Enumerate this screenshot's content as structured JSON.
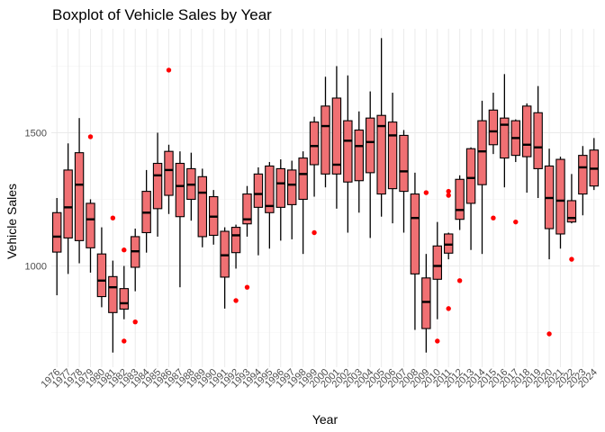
{
  "chart_data": {
    "type": "boxplot",
    "title": "Boxplot of Vehicle Sales by Year",
    "xlabel": "Year",
    "ylabel": "Vehicle Sales",
    "ylim": [
      620,
      1890
    ],
    "yticks": [
      1000,
      1500
    ],
    "grid": true,
    "box_color": "#F07073",
    "outlier_color": "#FF0000",
    "categories": [
      "1976",
      "1977",
      "1978",
      "1979",
      "1980",
      "1981",
      "1982",
      "1983",
      "1984",
      "1985",
      "1986",
      "1987",
      "1988",
      "1989",
      "1990",
      "1991",
      "1992",
      "1993",
      "1994",
      "1995",
      "1996",
      "1997",
      "1998",
      "1999",
      "2000",
      "2001",
      "2002",
      "2003",
      "2004",
      "2005",
      "2006",
      "2007",
      "2008",
      "2009",
      "2010",
      "2011",
      "2012",
      "2013",
      "2014",
      "2015",
      "2016",
      "2017",
      "2018",
      "2019",
      "2020",
      "2021",
      "2022",
      "2023",
      "2024"
    ],
    "boxes": [
      {
        "x": "1976",
        "whisker_low": 890,
        "q1": 1052,
        "median": 1110,
        "q3": 1200,
        "whisker_high": 1255,
        "outliers": []
      },
      {
        "x": "1977",
        "whisker_low": 970,
        "q1": 1105,
        "median": 1220,
        "q3": 1360,
        "whisker_high": 1460,
        "outliers": []
      },
      {
        "x": "1978",
        "whisker_low": 1010,
        "q1": 1095,
        "median": 1305,
        "q3": 1425,
        "whisker_high": 1555,
        "outliers": []
      },
      {
        "x": "1979",
        "whisker_low": 975,
        "q1": 1068,
        "median": 1175,
        "q3": 1235,
        "whisker_high": 1250,
        "outliers": [
          1485
        ]
      },
      {
        "x": "1980",
        "whisker_low": 845,
        "q1": 885,
        "median": 945,
        "q3": 1045,
        "whisker_high": 1145,
        "outliers": []
      },
      {
        "x": "1981",
        "whisker_low": 675,
        "q1": 825,
        "median": 920,
        "q3": 960,
        "whisker_high": 1020,
        "outliers": [
          1180
        ]
      },
      {
        "x": "1982",
        "whisker_low": 800,
        "q1": 838,
        "median": 860,
        "q3": 915,
        "whisker_high": 1000,
        "outliers": [
          718,
          1060
        ]
      },
      {
        "x": "1983",
        "whisker_low": 905,
        "q1": 995,
        "median": 1055,
        "q3": 1110,
        "whisker_high": 1140,
        "outliers": [
          790
        ]
      },
      {
        "x": "1984",
        "whisker_low": 1050,
        "q1": 1125,
        "median": 1200,
        "q3": 1280,
        "whisker_high": 1360,
        "outliers": []
      },
      {
        "x": "1985",
        "whisker_low": 1110,
        "q1": 1215,
        "median": 1340,
        "q3": 1385,
        "whisker_high": 1500,
        "outliers": []
      },
      {
        "x": "1986",
        "whisker_low": 1195,
        "q1": 1265,
        "median": 1360,
        "q3": 1430,
        "whisker_high": 1455,
        "outliers": [
          1735
        ]
      },
      {
        "x": "1987",
        "whisker_low": 920,
        "q1": 1185,
        "median": 1300,
        "q3": 1385,
        "whisker_high": 1430,
        "outliers": []
      },
      {
        "x": "1988",
        "whisker_low": 1170,
        "q1": 1250,
        "median": 1305,
        "q3": 1365,
        "whisker_high": 1425,
        "outliers": []
      },
      {
        "x": "1989",
        "whisker_low": 1070,
        "q1": 1110,
        "median": 1275,
        "q3": 1335,
        "whisker_high": 1365,
        "outliers": []
      },
      {
        "x": "1990",
        "whisker_low": 1080,
        "q1": 1115,
        "median": 1185,
        "q3": 1260,
        "whisker_high": 1285,
        "outliers": []
      },
      {
        "x": "1991",
        "whisker_low": 840,
        "q1": 958,
        "median": 1040,
        "q3": 1130,
        "whisker_high": 1145,
        "outliers": []
      },
      {
        "x": "1992",
        "whisker_low": 990,
        "q1": 1050,
        "median": 1115,
        "q3": 1145,
        "whisker_high": 1155,
        "outliers": [
          870
        ]
      },
      {
        "x": "1993",
        "whisker_low": 1110,
        "q1": 1158,
        "median": 1175,
        "q3": 1270,
        "whisker_high": 1300,
        "outliers": [
          920
        ]
      },
      {
        "x": "1994",
        "whisker_low": 1040,
        "q1": 1220,
        "median": 1270,
        "q3": 1345,
        "whisker_high": 1370,
        "outliers": []
      },
      {
        "x": "1995",
        "whisker_low": 1065,
        "q1": 1200,
        "median": 1225,
        "q3": 1375,
        "whisker_high": 1390,
        "outliers": []
      },
      {
        "x": "1996",
        "whisker_low": 1095,
        "q1": 1220,
        "median": 1310,
        "q3": 1365,
        "whisker_high": 1400,
        "outliers": []
      },
      {
        "x": "1997",
        "whisker_low": 1100,
        "q1": 1230,
        "median": 1305,
        "q3": 1360,
        "whisker_high": 1395,
        "outliers": []
      },
      {
        "x": "1998",
        "whisker_low": 1045,
        "q1": 1250,
        "median": 1345,
        "q3": 1405,
        "whisker_high": 1430,
        "outliers": []
      },
      {
        "x": "1999",
        "whisker_low": 1260,
        "q1": 1380,
        "median": 1450,
        "q3": 1540,
        "whisker_high": 1560,
        "outliers": [
          1125
        ]
      },
      {
        "x": "2000",
        "whisker_low": 1295,
        "q1": 1345,
        "median": 1525,
        "q3": 1600,
        "whisker_high": 1710,
        "outliers": []
      },
      {
        "x": "2001",
        "whisker_low": 1215,
        "q1": 1345,
        "median": 1380,
        "q3": 1630,
        "whisker_high": 1750,
        "outliers": []
      },
      {
        "x": "2002",
        "whisker_low": 1125,
        "q1": 1315,
        "median": 1470,
        "q3": 1545,
        "whisker_high": 1715,
        "outliers": []
      },
      {
        "x": "2003",
        "whisker_low": 1200,
        "q1": 1320,
        "median": 1450,
        "q3": 1510,
        "whisker_high": 1580,
        "outliers": []
      },
      {
        "x": "2004",
        "whisker_low": 1105,
        "q1": 1350,
        "median": 1465,
        "q3": 1555,
        "whisker_high": 1655,
        "outliers": []
      },
      {
        "x": "2005",
        "whisker_low": 1185,
        "q1": 1270,
        "median": 1525,
        "q3": 1565,
        "whisker_high": 1855,
        "outliers": []
      },
      {
        "x": "2006",
        "whisker_low": 1160,
        "q1": 1290,
        "median": 1490,
        "q3": 1540,
        "whisker_high": 1650,
        "outliers": []
      },
      {
        "x": "2007",
        "whisker_low": 1125,
        "q1": 1280,
        "median": 1355,
        "q3": 1490,
        "whisker_high": 1510,
        "outliers": []
      },
      {
        "x": "2008",
        "whisker_low": 760,
        "q1": 970,
        "median": 1180,
        "q3": 1270,
        "whisker_high": 1350,
        "outliers": []
      },
      {
        "x": "2009",
        "whisker_low": 675,
        "q1": 765,
        "median": 865,
        "q3": 955,
        "whisker_high": 1045,
        "outliers": [
          1275
        ]
      },
      {
        "x": "2010",
        "whisker_low": 800,
        "q1": 950,
        "median": 1000,
        "q3": 1075,
        "whisker_high": 1165,
        "outliers": [
          718
        ]
      },
      {
        "x": "2011",
        "whisker_low": 1025,
        "q1": 1048,
        "median": 1080,
        "q3": 1120,
        "whisker_high": 1125,
        "outliers": [
          840,
          1265,
          1280
        ]
      },
      {
        "x": "2012",
        "whisker_low": 1135,
        "q1": 1175,
        "median": 1210,
        "q3": 1325,
        "whisker_high": 1340,
        "outliers": [
          945
        ]
      },
      {
        "x": "2013",
        "whisker_low": 1060,
        "q1": 1235,
        "median": 1330,
        "q3": 1440,
        "whisker_high": 1445,
        "outliers": []
      },
      {
        "x": "2014",
        "whisker_low": 1045,
        "q1": 1305,
        "median": 1430,
        "q3": 1545,
        "whisker_high": 1620,
        "outliers": []
      },
      {
        "x": "2015",
        "whisker_low": 1420,
        "q1": 1455,
        "median": 1505,
        "q3": 1585,
        "whisker_high": 1650,
        "outliers": [
          1180
        ]
      },
      {
        "x": "2016",
        "whisker_low": 1295,
        "q1": 1405,
        "median": 1530,
        "q3": 1555,
        "whisker_high": 1720,
        "outliers": []
      },
      {
        "x": "2017",
        "whisker_low": 1390,
        "q1": 1415,
        "median": 1480,
        "q3": 1545,
        "whisker_high": 1550,
        "outliers": [
          1165
        ]
      },
      {
        "x": "2018",
        "whisker_low": 1275,
        "q1": 1410,
        "median": 1455,
        "q3": 1600,
        "whisker_high": 1610,
        "outliers": []
      },
      {
        "x": "2019",
        "whisker_low": 1255,
        "q1": 1365,
        "median": 1445,
        "q3": 1575,
        "whisker_high": 1675,
        "outliers": []
      },
      {
        "x": "2020",
        "whisker_low": 1025,
        "q1": 1140,
        "median": 1255,
        "q3": 1375,
        "whisker_high": 1440,
        "outliers": [
          745
        ]
      },
      {
        "x": "2021",
        "whisker_low": 1065,
        "q1": 1120,
        "median": 1245,
        "q3": 1400,
        "whisker_high": 1410,
        "outliers": []
      },
      {
        "x": "2022",
        "whisker_low": 1160,
        "q1": 1165,
        "median": 1180,
        "q3": 1245,
        "whisker_high": 1345,
        "outliers": [
          1025
        ]
      },
      {
        "x": "2023",
        "whisker_low": 1190,
        "q1": 1270,
        "median": 1370,
        "q3": 1415,
        "whisker_high": 1450,
        "outliers": []
      },
      {
        "x": "2024",
        "whisker_low": 1285,
        "q1": 1300,
        "median": 1365,
        "q3": 1435,
        "whisker_high": 1480,
        "outliers": []
      }
    ]
  }
}
